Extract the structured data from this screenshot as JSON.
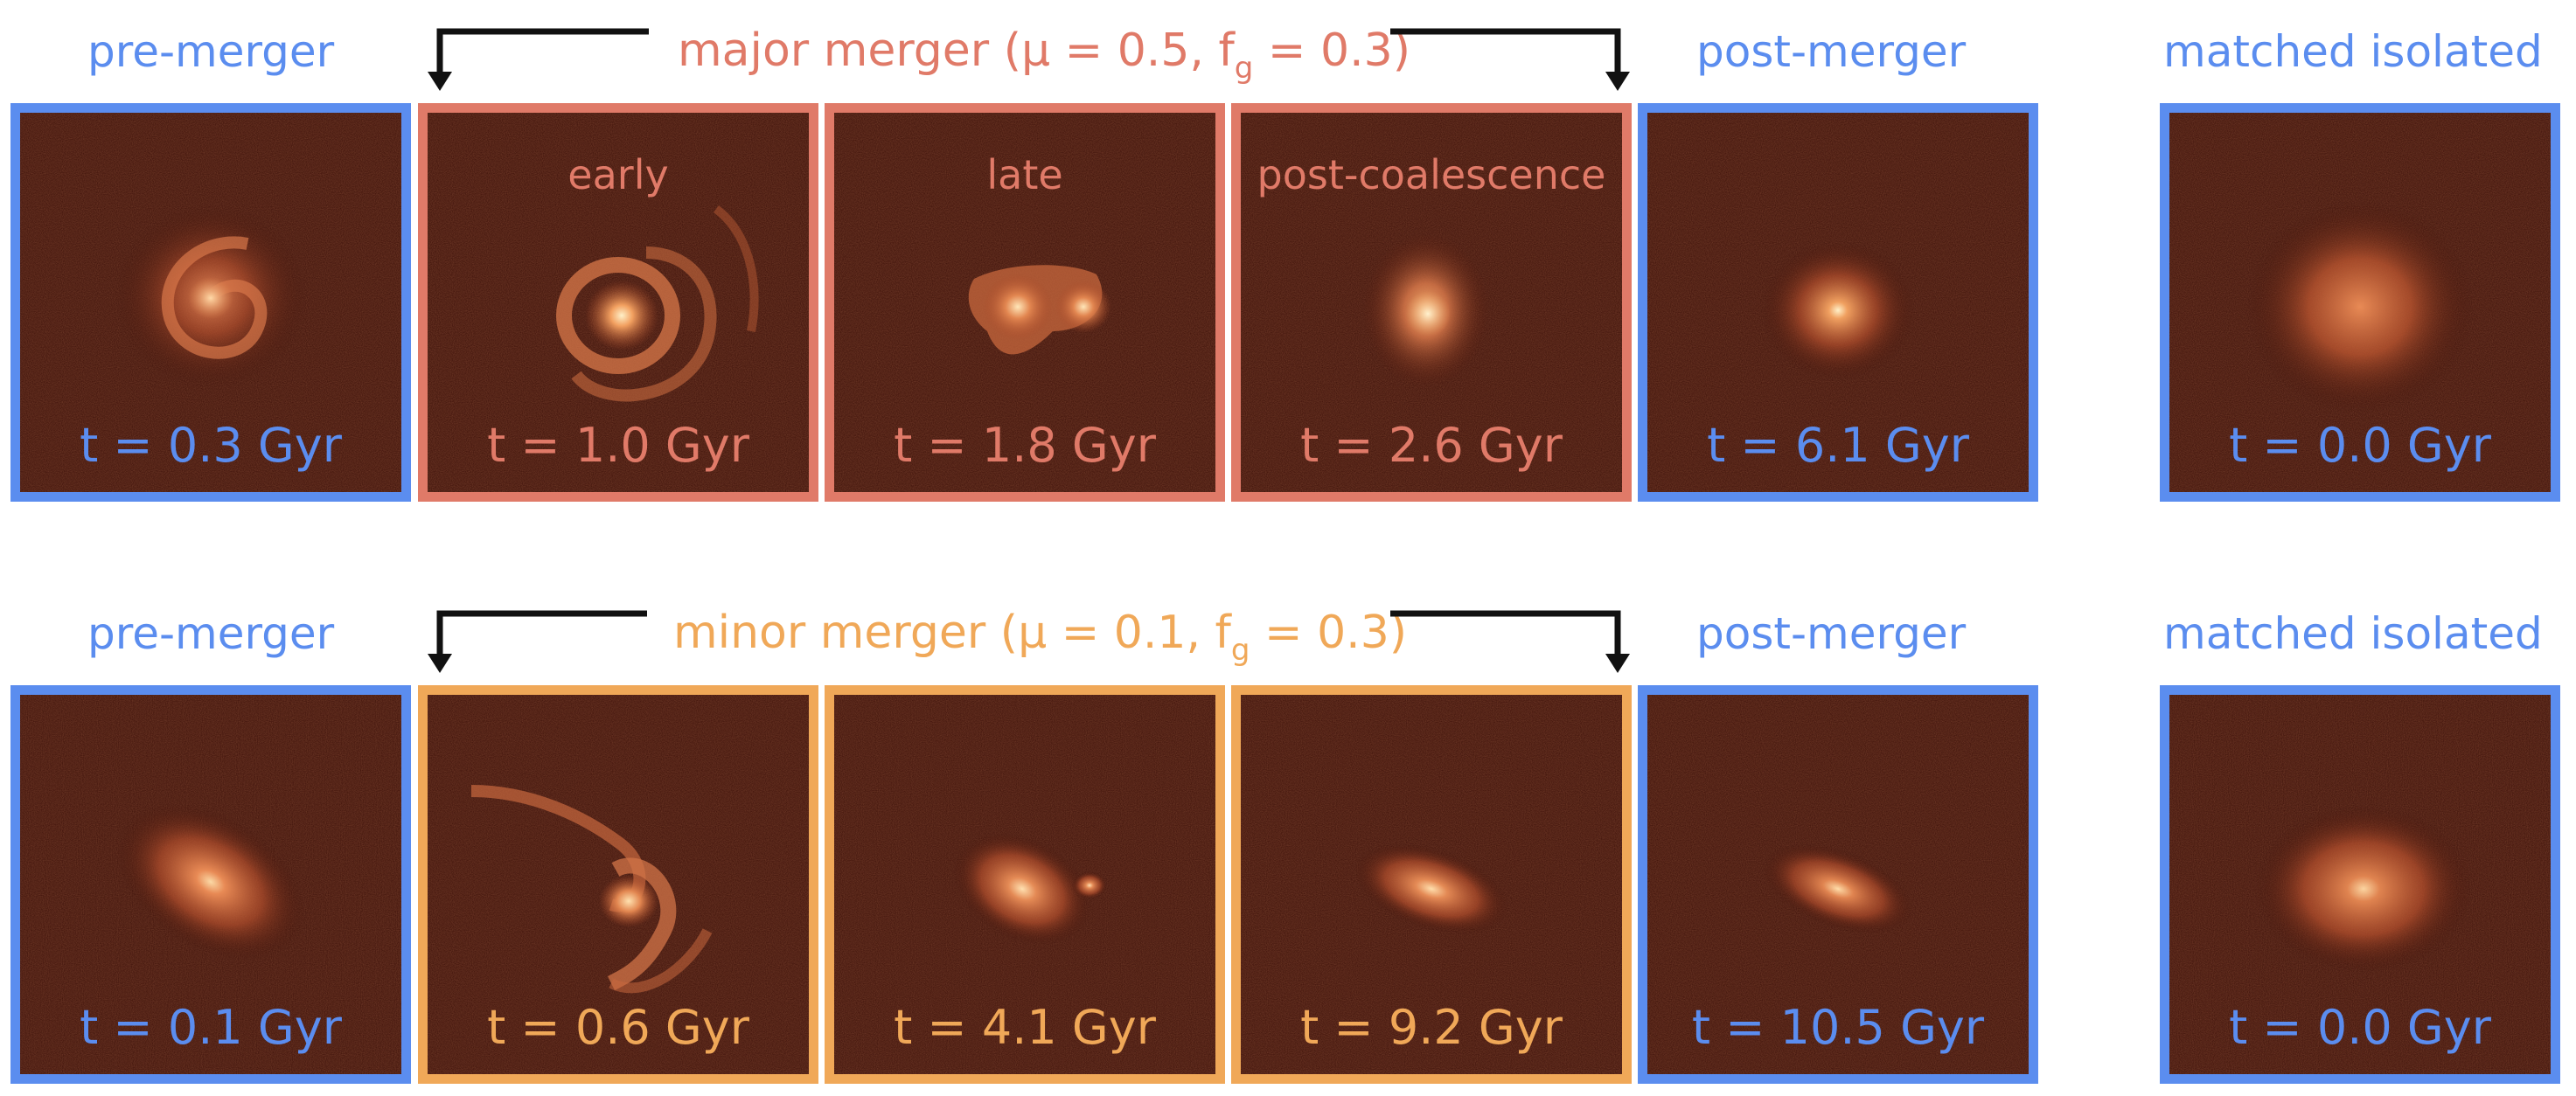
{
  "colors": {
    "blue": "#5b8def",
    "major": "#e07a68",
    "minor": "#f0a858",
    "black": "#111111"
  },
  "rows": [
    {
      "key": "major",
      "merger_title": {
        "pre": "major merger (μ = 0.5, f",
        "sub": "g",
        "post": " = 0.3)"
      },
      "pre_label": "pre-merger",
      "post_label": "post-merger",
      "iso_label": "matched isolated",
      "panels": [
        {
          "kind": "pre",
          "time": "t = 0.3 Gyr",
          "label": "",
          "icon": "spiral-galaxy-icon"
        },
        {
          "kind": "merger",
          "time": "t = 1.0 Gyr",
          "label": "early",
          "icon": "ringed-galaxy-icon"
        },
        {
          "kind": "merger",
          "time": "t = 1.8 Gyr",
          "label": "late",
          "icon": "interacting-galaxies-icon"
        },
        {
          "kind": "merger",
          "time": "t = 2.6 Gyr",
          "label": "post-coalescence",
          "icon": "merged-galaxy-icon"
        },
        {
          "kind": "post",
          "time": "t = 6.1 Gyr",
          "label": "",
          "icon": "compact-galaxy-icon"
        },
        {
          "kind": "iso",
          "time": "t = 0.0 Gyr",
          "label": "",
          "icon": "diffuse-galaxy-icon"
        }
      ]
    },
    {
      "key": "minor",
      "merger_title": {
        "pre": "minor merger (μ = 0.1, f",
        "sub": "g",
        "post": " = 0.3)"
      },
      "pre_label": "pre-merger",
      "post_label": "post-merger",
      "iso_label": "matched isolated",
      "panels": [
        {
          "kind": "pre",
          "time": "t = 0.1 Gyr",
          "label": "",
          "icon": "inclined-disk-galaxy-icon"
        },
        {
          "kind": "merger",
          "time": "t = 0.6 Gyr",
          "label": "",
          "icon": "tidal-tail-galaxy-icon"
        },
        {
          "kind": "merger",
          "time": "t = 4.1 Gyr",
          "label": "",
          "icon": "satellite-galaxy-icon"
        },
        {
          "kind": "merger",
          "time": "t = 9.2 Gyr",
          "label": "",
          "icon": "edge-on-galaxy-icon"
        },
        {
          "kind": "post",
          "time": "t = 10.5 Gyr",
          "label": "",
          "icon": "edge-on-galaxy-icon"
        },
        {
          "kind": "iso",
          "time": "t = 0.0 Gyr",
          "label": "",
          "icon": "elliptical-galaxy-icon"
        }
      ]
    }
  ]
}
